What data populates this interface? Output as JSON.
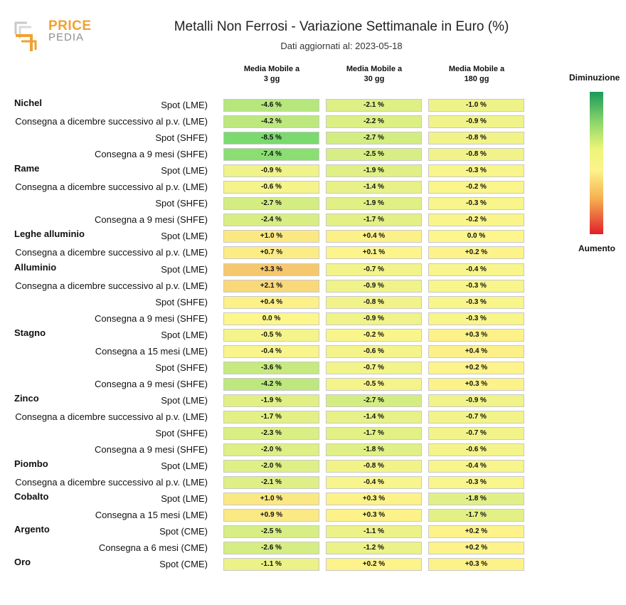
{
  "logo": {
    "word1": "PRICE",
    "word2": "PEDIA"
  },
  "chart_data": {
    "type": "table",
    "title": "Metalli Non Ferrosi - Variazione Settimanale in Euro (%)",
    "subtitle": "Dati aggiornati al: 2023-05-18",
    "columns": [
      {
        "line1": "Media Mobile a",
        "line2": "3 gg"
      },
      {
        "line1": "Media Mobile a",
        "line2": "30 gg"
      },
      {
        "line1": "Media Mobile a",
        "line2": "180 gg"
      }
    ],
    "legend": {
      "top": "Diminuzione",
      "bottom": "Aumento",
      "colors": [
        "#1a9a5a",
        "#8fd86a",
        "#fdf38c",
        "#f6b050",
        "#e0202a"
      ]
    },
    "groups": [
      {
        "name": "Nichel",
        "rows": [
          {
            "label": "Spot (LME)",
            "values": [
              "-4.6 %",
              "-2.1 %",
              "-1.0 %"
            ]
          },
          {
            "label": "Consegna a dicembre successivo al p.v. (LME)",
            "values": [
              "-4.2 %",
              "-2.2 %",
              "-0.9 %"
            ]
          },
          {
            "label": "Spot (SHFE)",
            "values": [
              "-8.5 %",
              "-2.7 %",
              "-0.8 %"
            ]
          },
          {
            "label": "Consegna a 9 mesi (SHFE)",
            "values": [
              "-7.4 %",
              "-2.5 %",
              "-0.8 %"
            ]
          }
        ]
      },
      {
        "name": "Rame",
        "rows": [
          {
            "label": "Spot (LME)",
            "values": [
              "-0.9 %",
              "-1.9 %",
              "-0.3 %"
            ]
          },
          {
            "label": "Consegna a dicembre successivo al p.v. (LME)",
            "values": [
              "-0.6 %",
              "-1.4 %",
              "-0.2 %"
            ]
          },
          {
            "label": "Spot (SHFE)",
            "values": [
              "-2.7 %",
              "-1.9 %",
              "-0.3 %"
            ]
          },
          {
            "label": "Consegna a 9 mesi (SHFE)",
            "values": [
              "-2.4 %",
              "-1.7 %",
              "-0.2 %"
            ]
          }
        ]
      },
      {
        "name": "Leghe alluminio",
        "rows": [
          {
            "label": "Spot (LME)",
            "values": [
              "+1.0 %",
              "+0.4 %",
              "0.0 %"
            ]
          },
          {
            "label": "Consegna a dicembre successivo al p.v. (LME)",
            "values": [
              "+0.7 %",
              "+0.1 %",
              "+0.2 %"
            ]
          }
        ]
      },
      {
        "name": "Alluminio",
        "rows": [
          {
            "label": "Spot (LME)",
            "values": [
              "+3.3 %",
              "-0.7 %",
              "-0.4 %"
            ]
          },
          {
            "label": "Consegna a dicembre successivo al p.v. (LME)",
            "values": [
              "+2.1 %",
              "-0.9 %",
              "-0.3 %"
            ]
          },
          {
            "label": "Spot (SHFE)",
            "values": [
              "+0.4 %",
              "-0.8 %",
              "-0.3 %"
            ]
          },
          {
            "label": "Consegna a 9 mesi (SHFE)",
            "values": [
              "0.0 %",
              "-0.9 %",
              "-0.3 %"
            ]
          }
        ]
      },
      {
        "name": "Stagno",
        "rows": [
          {
            "label": "Spot (LME)",
            "values": [
              "-0.5 %",
              "-0.2 %",
              "+0.3 %"
            ]
          },
          {
            "label": "Consegna a 15 mesi (LME)",
            "values": [
              "-0.4 %",
              "-0.6 %",
              "+0.4 %"
            ]
          },
          {
            "label": "Spot (SHFE)",
            "values": [
              "-3.6 %",
              "-0.7 %",
              "+0.2 %"
            ]
          },
          {
            "label": "Consegna a 9 mesi (SHFE)",
            "values": [
              "-4.2 %",
              "-0.5 %",
              "+0.3 %"
            ]
          }
        ]
      },
      {
        "name": "Zinco",
        "rows": [
          {
            "label": "Spot (LME)",
            "values": [
              "-1.9 %",
              "-2.7 %",
              "-0.9 %"
            ]
          },
          {
            "label": "Consegna a dicembre successivo al p.v. (LME)",
            "values": [
              "-1.7 %",
              "-1.4 %",
              "-0.7 %"
            ]
          },
          {
            "label": "Spot (SHFE)",
            "values": [
              "-2.3 %",
              "-1.7 %",
              "-0.7 %"
            ]
          },
          {
            "label": "Consegna a 9 mesi (SHFE)",
            "values": [
              "-2.0 %",
              "-1.8 %",
              "-0.6 %"
            ]
          }
        ]
      },
      {
        "name": "Piombo",
        "rows": [
          {
            "label": "Spot (LME)",
            "values": [
              "-2.0 %",
              "-0.8 %",
              "-0.4 %"
            ]
          },
          {
            "label": "Consegna a dicembre successivo al p.v. (LME)",
            "values": [
              "-2.1 %",
              "-0.4 %",
              "-0.3 %"
            ]
          }
        ]
      },
      {
        "name": "Cobalto",
        "rows": [
          {
            "label": "Spot (LME)",
            "values": [
              "+1.0 %",
              "+0.3 %",
              "-1.8 %"
            ]
          },
          {
            "label": "Consegna a 15 mesi (LME)",
            "values": [
              "+0.9 %",
              "+0.3 %",
              "-1.7 %"
            ]
          }
        ]
      },
      {
        "name": "Argento",
        "rows": [
          {
            "label": "Spot (CME)",
            "values": [
              "-2.5 %",
              "-1.1 %",
              "+0.2 %"
            ]
          },
          {
            "label": "Consegna a 6 mesi (CME)",
            "values": [
              "-2.6 %",
              "-1.2 %",
              "+0.2 %"
            ]
          }
        ]
      },
      {
        "name": "Oro",
        "rows": [
          {
            "label": "Spot (CME)",
            "values": [
              "-1.1 %",
              "+0.2 %",
              "+0.3 %"
            ]
          }
        ]
      }
    ]
  }
}
